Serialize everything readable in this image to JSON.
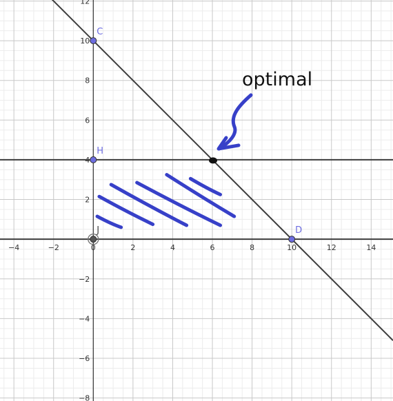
{
  "chart_data": {
    "type": "scatter",
    "title": "",
    "xlabel": "",
    "ylabel": "",
    "xlim": [
      -4.7,
      15.1
    ],
    "ylim": [
      -8.15,
      12.05
    ],
    "grid": true,
    "x_ticks": [
      -4,
      -2,
      0,
      2,
      4,
      6,
      8,
      10,
      12,
      14
    ],
    "y_ticks": [
      12,
      10,
      8,
      6,
      4,
      2,
      -2,
      -4,
      -6,
      -8
    ],
    "lines": [
      {
        "id": "line-cd",
        "from": [
          -2.1,
          12.1
        ],
        "to": [
          15.1,
          -5.1
        ]
      },
      {
        "id": "line-y4",
        "from": [
          -4.7,
          4
        ],
        "to": [
          15.1,
          4
        ]
      },
      {
        "id": "line-y0",
        "from": [
          -4.7,
          0
        ],
        "to": [
          15.1,
          0
        ]
      }
    ],
    "points": [
      {
        "label": "C",
        "x": 0,
        "y": 10,
        "color": "#6d6de0"
      },
      {
        "label": "H",
        "x": 0,
        "y": 4,
        "color": "#6d6de0"
      },
      {
        "label": "J",
        "x": 0,
        "y": 0,
        "color": "#555555"
      },
      {
        "label": "D",
        "x": 10,
        "y": 0,
        "color": "#6d6de0"
      }
    ],
    "optimal_point": {
      "x": 6,
      "y": 4
    },
    "annotation": {
      "text": "optimal"
    },
    "hatching": [
      [
        [
          0.2,
          1.15
        ],
        [
          1.4,
          0.6
        ]
      ],
      [
        [
          0.3,
          2.15
        ],
        [
          3.0,
          0.75
        ]
      ],
      [
        [
          0.9,
          2.75
        ],
        [
          4.7,
          0.7
        ]
      ],
      [
        [
          2.2,
          2.85
        ],
        [
          6.4,
          0.7
        ]
      ],
      [
        [
          3.7,
          3.25
        ],
        [
          7.1,
          1.15
        ]
      ],
      [
        [
          4.9,
          3.05
        ],
        [
          6.4,
          2.25
        ]
      ]
    ],
    "colors": {
      "line": "#3c3c3c",
      "hatch": "#3740c8",
      "grid_major": "#c8c8c8",
      "grid_minor": "#ececec"
    }
  }
}
